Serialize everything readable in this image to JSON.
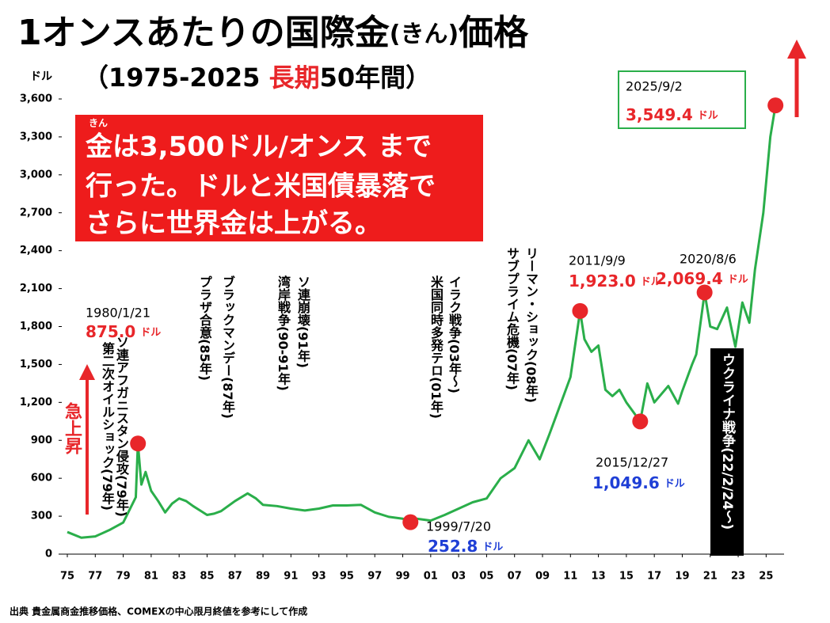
{
  "chart_data": {
    "type": "line",
    "title": [
      "1オンスあたりの国際金",
      "(きん)",
      "価格"
    ],
    "subtitle": [
      "（1975-2025 ",
      "長期",
      "50年間）"
    ],
    "y_label": "ドル",
    "callout": {
      "ruby": "きん",
      "lines": [
        "金は3,500ドル/オンス まで",
        "行った。ドルと米国債暴落で",
        "さらに世界金は上がる。"
      ]
    },
    "rise_label": "急上昇",
    "source": "出典 貴金属商金推移価格、COMEXの中心限月終値を参考にして作成",
    "color": "#2aae4a",
    "xlim": [
      1975,
      2026
    ],
    "ylim": [
      0,
      3600
    ],
    "xticks": [
      {
        "value": 1975,
        "label": "75"
      },
      {
        "value": 1977,
        "label": "77"
      },
      {
        "value": 1979,
        "label": "79"
      },
      {
        "value": 1981,
        "label": "81"
      },
      {
        "value": 1983,
        "label": "83"
      },
      {
        "value": 1985,
        "label": "85"
      },
      {
        "value": 1987,
        "label": "87"
      },
      {
        "value": 1989,
        "label": "89"
      },
      {
        "value": 1991,
        "label": "91"
      },
      {
        "value": 1993,
        "label": "93"
      },
      {
        "value": 1995,
        "label": "95"
      },
      {
        "value": 1997,
        "label": "97"
      },
      {
        "value": 1999,
        "label": "99"
      },
      {
        "value": 2001,
        "label": "01"
      },
      {
        "value": 2003,
        "label": "03"
      },
      {
        "value": 2005,
        "label": "05"
      },
      {
        "value": 2007,
        "label": "07"
      },
      {
        "value": 2009,
        "label": "09"
      },
      {
        "value": 2011,
        "label": "11"
      },
      {
        "value": 2013,
        "label": "13"
      },
      {
        "value": 2015,
        "label": "15"
      },
      {
        "value": 2017,
        "label": "17"
      },
      {
        "value": 2019,
        "label": "19"
      },
      {
        "value": 2021,
        "label": "21"
      },
      {
        "value": 2023,
        "label": "23"
      },
      {
        "value": 2025,
        "label": "25"
      }
    ],
    "yticks": [
      0,
      300,
      600,
      900,
      {
        "value": 1200,
        "label": "1,200"
      },
      {
        "value": 1500,
        "label": "1,500"
      },
      {
        "value": 1800,
        "label": "1,800"
      },
      {
        "value": 2100,
        "label": "2,100"
      },
      {
        "value": 2400,
        "label": "2,400"
      },
      {
        "value": 2700,
        "label": "2,700"
      },
      {
        "value": 3000,
        "label": "3,000"
      },
      {
        "value": 3300,
        "label": "3,300"
      },
      {
        "value": 3600,
        "label": "3,600"
      }
    ],
    "x": [
      1975,
      1976,
      1977,
      1978,
      1979,
      1979.9,
      1980.05,
      1980.3,
      1980.6,
      1981,
      1981.5,
      1982,
      1982.5,
      1983,
      1983.5,
      1984,
      1985,
      1985.5,
      1986,
      1987,
      1987.9,
      1988.5,
      1989,
      1990,
      1991,
      1992,
      1993,
      1994,
      1995,
      1996,
      1997,
      1998,
      1999,
      1999.55,
      2000,
      2001,
      2002,
      2003,
      2004,
      2005,
      2006,
      2007,
      2008,
      2008.8,
      2009.5,
      2010,
      2010.5,
      2011,
      2011.69,
      2012,
      2012.5,
      2013,
      2013.5,
      2014,
      2014.5,
      2015,
      2015.99,
      2016.5,
      2017,
      2018,
      2018.7,
      2019,
      2019.7,
      2020,
      2020.6,
      2021,
      2021.5,
      2022.2,
      2022.8,
      2023.3,
      2023.8,
      2024.2,
      2024.8,
      2025.3,
      2025.67
    ],
    "values": [
      175,
      130,
      140,
      190,
      250,
      450,
      875,
      550,
      650,
      500,
      420,
      330,
      400,
      440,
      420,
      380,
      310,
      320,
      340,
      420,
      480,
      440,
      390,
      380,
      360,
      345,
      360,
      385,
      385,
      390,
      330,
      295,
      280,
      252.8,
      280,
      265,
      310,
      360,
      410,
      440,
      600,
      680,
      900,
      750,
      950,
      1100,
      1250,
      1400,
      1923,
      1700,
      1600,
      1650,
      1300,
      1250,
      1300,
      1200,
      1049.6,
      1350,
      1200,
      1330,
      1190,
      1290,
      1500,
      1580,
      2069.4,
      1800,
      1780,
      1950,
      1640,
      1990,
      1830,
      2250,
      2700,
      3300,
      3549.4
    ],
    "highlights": [
      {
        "date": "1980/1/21",
        "value": 875,
        "value_label": "875.0",
        "unit": "ドル",
        "color": "#e8262a"
      },
      {
        "date": "1999/7/20",
        "value": 252.8,
        "value_label": "252.8",
        "unit": "ドル",
        "color": "#1f3fd6"
      },
      {
        "date": "2011/9/9",
        "value": 1923,
        "value_label": "1,923.0",
        "unit": "ドル",
        "color": "#e8262a"
      },
      {
        "date": "2015/12/27",
        "value": 1049.6,
        "value_label": "1,049.6",
        "unit": "ドル",
        "color": "#1f3fd6"
      },
      {
        "date": "2020/8/6",
        "value": 2069.4,
        "value_label": "2,069.4",
        "unit": "ドル",
        "color": "#e8262a"
      },
      {
        "date": "2025/9/2",
        "value": 3549.4,
        "value_label": "3,549.4",
        "unit": "ドル",
        "color": "#e8262a"
      }
    ],
    "events": [
      "ソ連アフガニスタン侵攻(79年)",
      "第二次オイルショック(79年)",
      "プラザ合意(85年)",
      "ブラックマンデー(87年)",
      "湾岸戦争(90-91年)",
      "ソ連崩壊(91年)",
      "米国同時多発テロ(01年)",
      "イラク戦争(03年〜)",
      "サブプライム危機(07年)",
      "リーマン・ショック(08年)",
      "ウクライナ戦争(22/2/24〜)"
    ]
  }
}
